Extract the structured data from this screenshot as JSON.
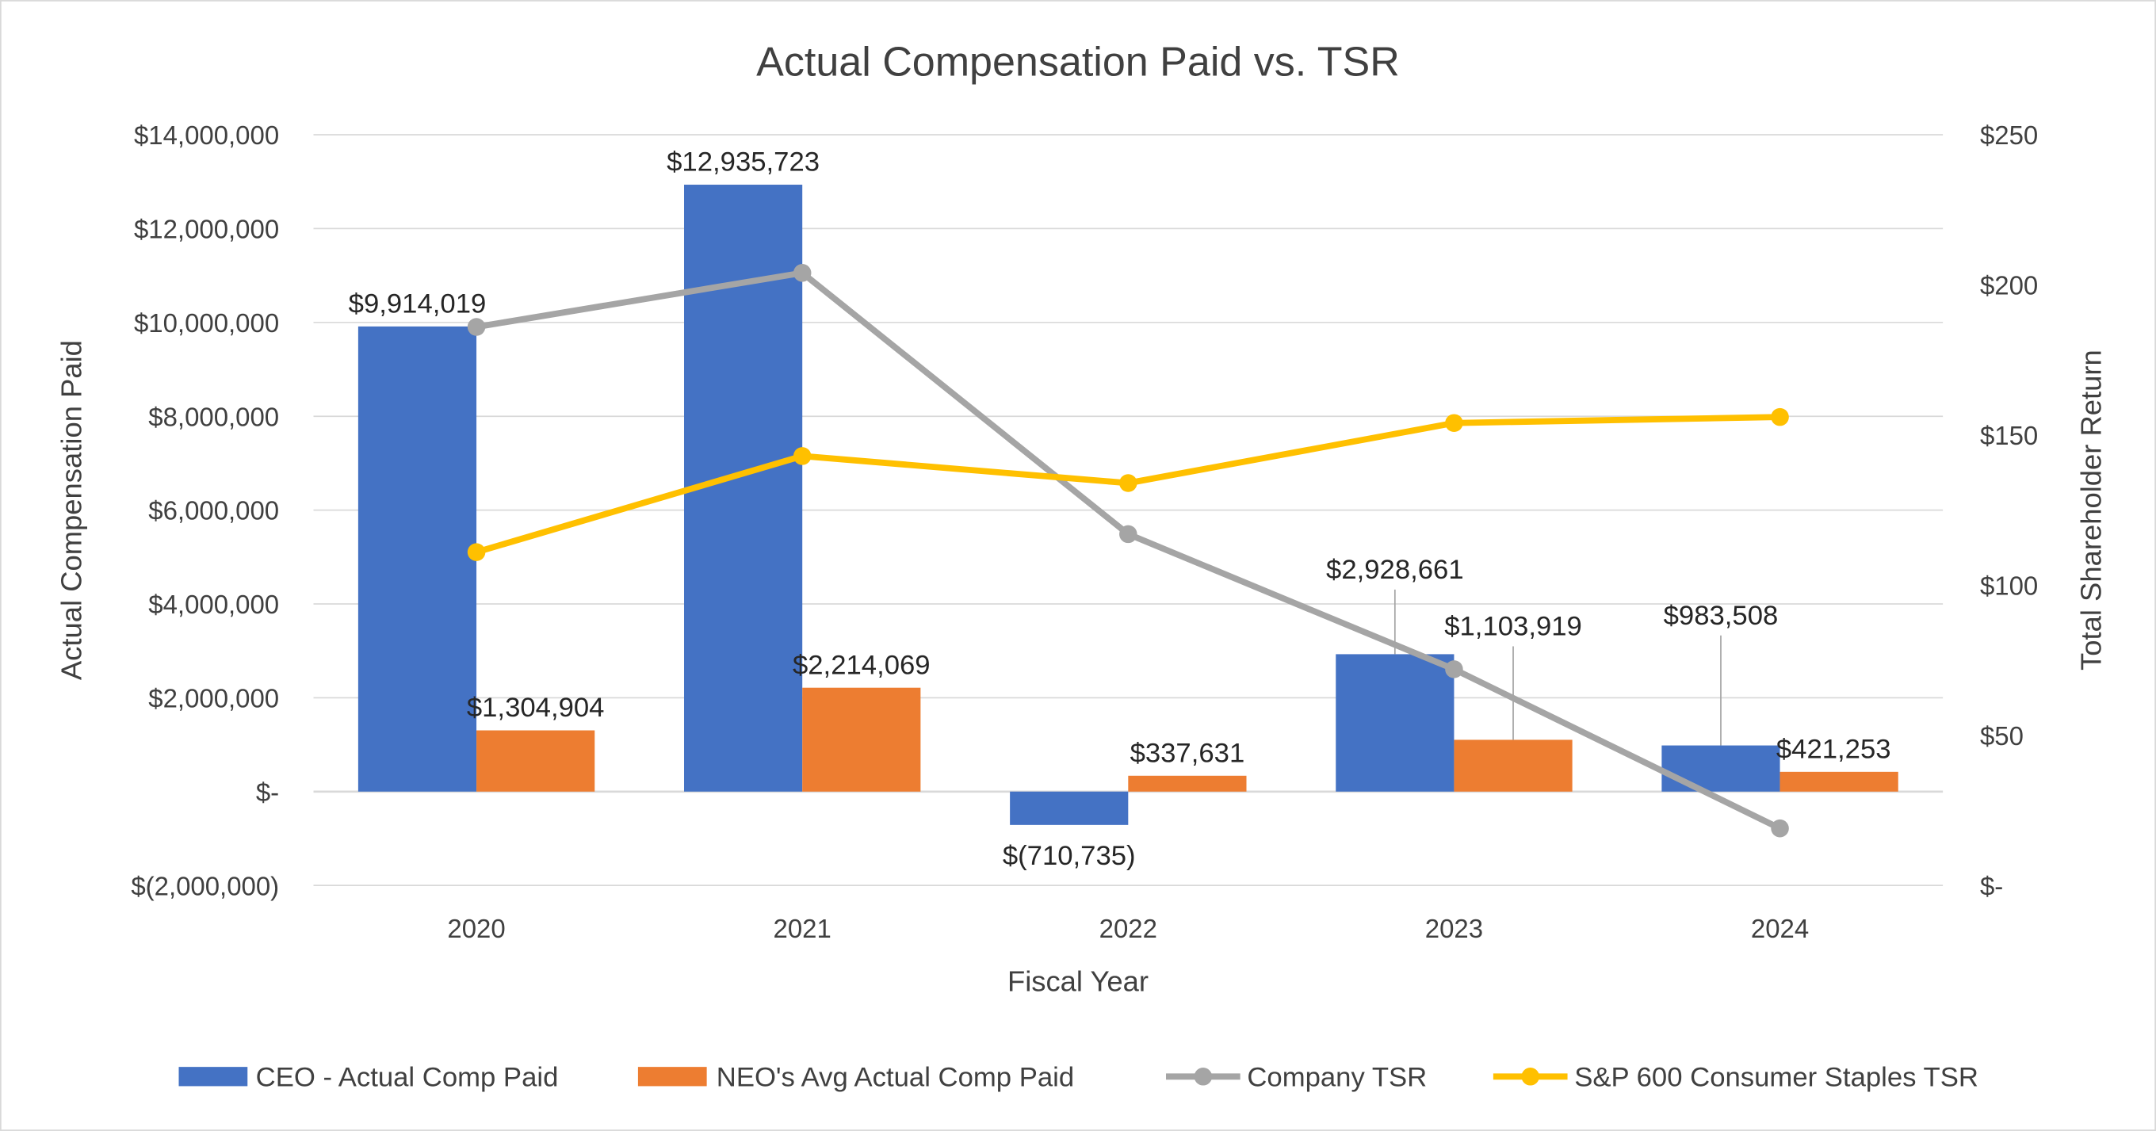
{
  "chart_data": {
    "type": "bar+line",
    "title": "Actual Compensation Paid vs. TSR",
    "xlabel": "Fiscal Year",
    "ylabel": "Actual Compensation Paid",
    "y2label": "Total Shareholder Return",
    "categories": [
      "2020",
      "2021",
      "2022",
      "2023",
      "2024"
    ],
    "ylim": [
      -2000000,
      14000000
    ],
    "y2lim": [
      0,
      250
    ],
    "yticks": [
      "$(2,000,000)",
      "$-",
      "$2,000,000",
      "$4,000,000",
      "$6,000,000",
      "$8,000,000",
      "$10,000,000",
      "$12,000,000",
      "$14,000,000"
    ],
    "y2ticks": [
      "$-",
      "$50",
      "$100",
      "$150",
      "$200",
      "$250"
    ],
    "grid": true,
    "legend_position": "bottom",
    "series": [
      {
        "name": "CEO - Actual Comp Paid",
        "kind": "bar",
        "axis": "left",
        "color": "#4472c4",
        "values": [
          9914019,
          12935723,
          -710735,
          2928661,
          983508
        ],
        "labels": [
          "$9,914,019",
          "$12,935,723",
          "$(710,735)",
          "$2,928,661",
          "$983,508"
        ]
      },
      {
        "name": "NEO's Avg Actual Comp Paid",
        "kind": "bar",
        "axis": "left",
        "color": "#ed7d31",
        "values": [
          1304904,
          2214069,
          337631,
          1103919,
          421253
        ],
        "labels": [
          "$1,304,904",
          "$2,214,069",
          "$337,631",
          "$1,103,919",
          "$421,253"
        ]
      },
      {
        "name": "Company TSR",
        "kind": "line",
        "axis": "right",
        "color": "#a5a5a5",
        "values": [
          186,
          204,
          117,
          72,
          19
        ]
      },
      {
        "name": "S&P 600 Consumer Staples TSR",
        "kind": "line",
        "axis": "right",
        "color": "#ffc000",
        "values": [
          111,
          143,
          134,
          154,
          156
        ]
      }
    ]
  }
}
